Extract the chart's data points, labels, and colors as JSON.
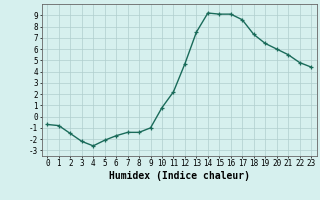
{
  "x": [
    0,
    1,
    2,
    3,
    4,
    5,
    6,
    7,
    8,
    9,
    10,
    11,
    12,
    13,
    14,
    15,
    16,
    17,
    18,
    19,
    20,
    21,
    22,
    23
  ],
  "y": [
    -0.7,
    -0.8,
    -1.5,
    -2.2,
    -2.6,
    -2.1,
    -1.7,
    -1.4,
    -1.4,
    -1.0,
    0.8,
    2.2,
    4.7,
    7.5,
    9.2,
    9.1,
    9.1,
    8.6,
    7.3,
    6.5,
    6.0,
    5.5,
    4.8,
    4.4
  ],
  "line_color": "#1a6b5a",
  "marker": "+",
  "markersize": 3.5,
  "linewidth": 1.0,
  "xlabel": "Humidex (Indice chaleur)",
  "xlim": [
    -0.5,
    23.5
  ],
  "ylim": [
    -3.5,
    10.0
  ],
  "yticks": [
    -3,
    -2,
    -1,
    0,
    1,
    2,
    3,
    4,
    5,
    6,
    7,
    8,
    9
  ],
  "xticks": [
    0,
    1,
    2,
    3,
    4,
    5,
    6,
    7,
    8,
    9,
    10,
    11,
    12,
    13,
    14,
    15,
    16,
    17,
    18,
    19,
    20,
    21,
    22,
    23
  ],
  "bg_color": "#d6f0ee",
  "grid_color": "#b0cece",
  "tick_fontsize": 5.5,
  "xlabel_fontsize": 7.0
}
